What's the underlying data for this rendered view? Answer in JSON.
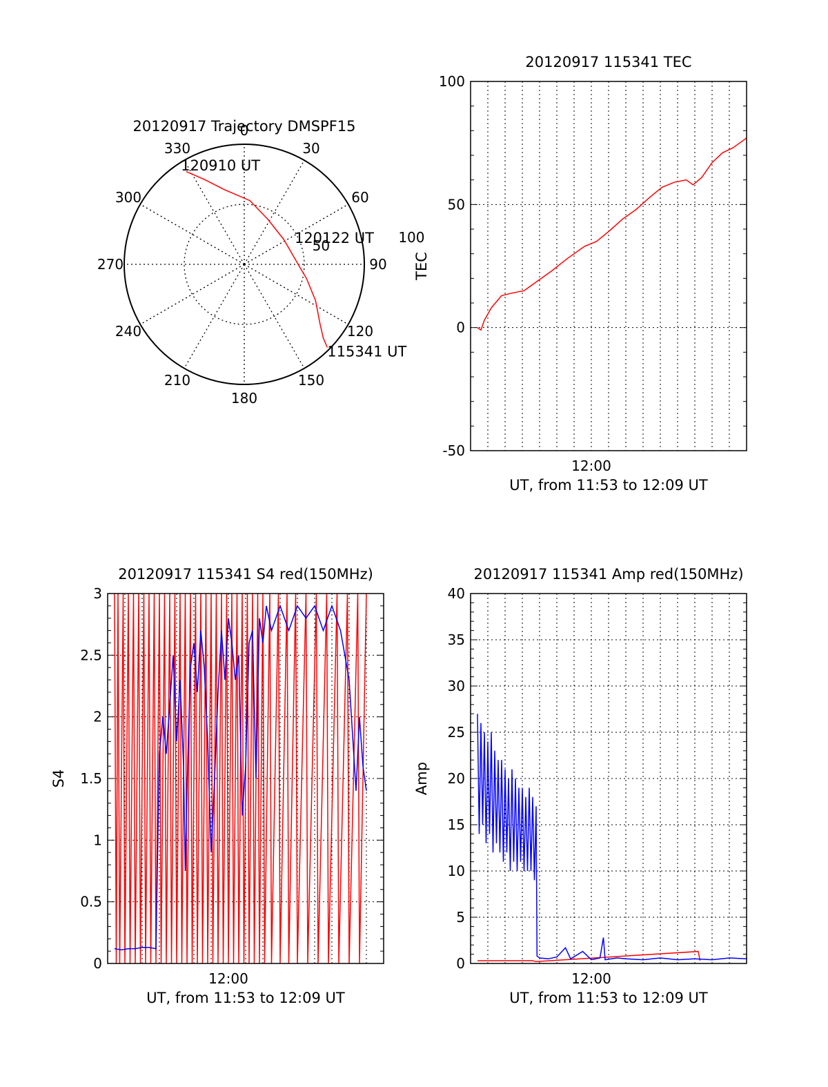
{
  "colors": {
    "red": "#ff0000",
    "blue": "#0000ff",
    "grid": "#000000",
    "axis": "#000000"
  },
  "chart_data": [
    {
      "id": "trajectory",
      "type": "scatter",
      "title": "20120917 Trajectory DMSPF15",
      "projection": "polar",
      "elevation_max": 90,
      "azimuth_labels": [
        "0",
        "30",
        "60",
        "90",
        "120",
        "150",
        "180",
        "210",
        "240",
        "270",
        "300",
        "330"
      ],
      "ring_labels": [
        {
          "text": "50",
          "r": 50
        },
        {
          "text": "100",
          "r": 100
        }
      ],
      "annotations": [
        {
          "text": "120910 UT",
          "az": 326,
          "r": 85
        },
        {
          "text": "120122 UT",
          "az": 67,
          "r": 41
        },
        {
          "text": "115341 UT",
          "az": 138,
          "r": 93
        }
      ],
      "track": {
        "color": "red",
        "points": [
          [
            328,
            82
          ],
          [
            335,
            70
          ],
          [
            345,
            58
          ],
          [
            5,
            48
          ],
          [
            28,
            38
          ],
          [
            58,
            35
          ],
          [
            83,
            38
          ],
          [
            103,
            48
          ],
          [
            117,
            60
          ],
          [
            128,
            72
          ],
          [
            133,
            81
          ],
          [
            135,
            88
          ]
        ]
      },
      "grid": true
    },
    {
      "id": "tec",
      "type": "line",
      "title": "20120917 115341 TEC",
      "xlabel": "UT, from 11:53 to 12:09 UT",
      "ylabel": "TEC",
      "xlim": [
        -7,
        9
      ],
      "ylim": [
        -50,
        100
      ],
      "xticks": [
        {
          "v": 0,
          "text": "12:00"
        }
      ],
      "yticks": [
        {
          "v": -50,
          "text": "-50"
        },
        {
          "v": 0,
          "text": "0"
        },
        {
          "v": 50,
          "text": "50"
        },
        {
          "v": 100,
          "text": "100"
        }
      ],
      "grid": true,
      "series": [
        {
          "color": "red",
          "points": [
            [
              -6.6,
              0
            ],
            [
              -6.4,
              -1
            ],
            [
              -6.2,
              3
            ],
            [
              -5.8,
              8
            ],
            [
              -5.2,
              13
            ],
            [
              -4.6,
              14
            ],
            [
              -3.9,
              15
            ],
            [
              -3.1,
              19
            ],
            [
              -2.3,
              23
            ],
            [
              -1.4,
              28
            ],
            [
              -0.4,
              33
            ],
            [
              0.3,
              35
            ],
            [
              1.0,
              39
            ],
            [
              1.8,
              44
            ],
            [
              2.6,
              48
            ],
            [
              3.4,
              53
            ],
            [
              4.1,
              57
            ],
            [
              4.8,
              59
            ],
            [
              5.5,
              60
            ],
            [
              5.9,
              58
            ],
            [
              6.4,
              61
            ],
            [
              7.0,
              67
            ],
            [
              7.6,
              71
            ],
            [
              8.2,
              73
            ],
            [
              8.6,
              75
            ],
            [
              9.0,
              77
            ]
          ]
        }
      ]
    },
    {
      "id": "s4",
      "type": "line",
      "title": "20120917 115341 S4 red(150MHz)",
      "xlabel": "UT, from 11:53 to 12:09 UT",
      "ylabel": "S4",
      "xlim": [
        -7,
        9
      ],
      "ylim": [
        0,
        3
      ],
      "xticks": [
        {
          "v": 0,
          "text": "12:00"
        }
      ],
      "yticks": [
        {
          "v": 0,
          "text": "0"
        },
        {
          "v": 0.5,
          "text": "0.5"
        },
        {
          "v": 1,
          "text": "1"
        },
        {
          "v": 1.5,
          "text": "1.5"
        },
        {
          "v": 2,
          "text": "2"
        },
        {
          "v": 2.5,
          "text": "2.5"
        },
        {
          "v": 3,
          "text": "3"
        }
      ],
      "grid": true,
      "series": [
        {
          "color": "red",
          "points": [
            [
              -6.6,
              3
            ],
            [
              -6.5,
              0
            ],
            [
              -6.4,
              3
            ],
            [
              -6.3,
              0
            ],
            [
              -6.1,
              3
            ],
            [
              -6.0,
              0
            ],
            [
              -5.8,
              3
            ],
            [
              -5.7,
              0
            ],
            [
              -5.5,
              3
            ],
            [
              -5.4,
              0
            ],
            [
              -5.2,
              3
            ],
            [
              -5.1,
              0
            ],
            [
              -4.9,
              3
            ],
            [
              -4.8,
              0
            ],
            [
              -4.6,
              3
            ],
            [
              -4.5,
              0
            ],
            [
              -4.3,
              3
            ],
            [
              -4.2,
              0
            ],
            [
              -4.0,
              3
            ],
            [
              -3.9,
              0
            ],
            [
              -3.7,
              3
            ],
            [
              -3.6,
              0
            ],
            [
              -3.4,
              3
            ],
            [
              -3.3,
              0
            ],
            [
              -3.1,
              3
            ],
            [
              -3.0,
              0
            ],
            [
              -2.8,
              3
            ],
            [
              -2.7,
              0
            ],
            [
              -2.5,
              3
            ],
            [
              -2.4,
              0
            ],
            [
              -2.2,
              3
            ],
            [
              -2.1,
              0
            ],
            [
              -1.9,
              3
            ],
            [
              -1.8,
              0
            ],
            [
              -1.6,
              3
            ],
            [
              -1.5,
              0
            ],
            [
              -1.3,
              3
            ],
            [
              -1.2,
              0
            ],
            [
              -1.0,
              3
            ],
            [
              -0.9,
              0
            ],
            [
              -0.7,
              3
            ],
            [
              -0.6,
              0
            ],
            [
              -0.4,
              3
            ],
            [
              -0.3,
              0
            ],
            [
              -0.1,
              3
            ],
            [
              0.0,
              0
            ],
            [
              0.2,
              3
            ],
            [
              0.3,
              0
            ],
            [
              0.5,
              3
            ],
            [
              0.6,
              0
            ],
            [
              0.8,
              3
            ],
            [
              0.9,
              0
            ],
            [
              1.1,
              3
            ],
            [
              1.2,
              0
            ],
            [
              1.4,
              3
            ],
            [
              1.5,
              0
            ],
            [
              1.7,
              3
            ],
            [
              1.8,
              0
            ],
            [
              2.0,
              3
            ],
            [
              2.1,
              0
            ],
            [
              2.4,
              3
            ],
            [
              2.5,
              0
            ],
            [
              2.9,
              3
            ],
            [
              3.0,
              0
            ],
            [
              3.4,
              3
            ],
            [
              3.5,
              0
            ],
            [
              3.9,
              3
            ],
            [
              4.0,
              0
            ],
            [
              4.5,
              3
            ],
            [
              4.6,
              0
            ],
            [
              5.1,
              3
            ],
            [
              5.2,
              0
            ],
            [
              5.7,
              3
            ],
            [
              5.8,
              0
            ],
            [
              6.3,
              3
            ],
            [
              6.4,
              0
            ],
            [
              6.9,
              3
            ],
            [
              7.0,
              0
            ],
            [
              7.5,
              3
            ],
            [
              7.6,
              0
            ],
            [
              8.0,
              3
            ]
          ]
        },
        {
          "color": "blue",
          "points": [
            [
              -6.6,
              0.12
            ],
            [
              -6.2,
              0.11
            ],
            [
              -5.8,
              0.12
            ],
            [
              -5.4,
              0.12
            ],
            [
              -5.0,
              0.13
            ],
            [
              -4.6,
              0.13
            ],
            [
              -4.2,
              0.12
            ],
            [
              -4.0,
              1.7
            ],
            [
              -3.8,
              2.0
            ],
            [
              -3.6,
              1.7
            ],
            [
              -3.4,
              2.1
            ],
            [
              -3.2,
              2.5
            ],
            [
              -3.0,
              1.8
            ],
            [
              -2.8,
              2.3
            ],
            [
              -2.6,
              1.6
            ],
            [
              -2.5,
              0.75
            ],
            [
              -2.4,
              1.4
            ],
            [
              -2.2,
              2.4
            ],
            [
              -2.0,
              2.6
            ],
            [
              -1.8,
              2.2
            ],
            [
              -1.6,
              2.7
            ],
            [
              -1.4,
              2.4
            ],
            [
              -1.2,
              1.8
            ],
            [
              -1.0,
              0.9
            ],
            [
              -0.8,
              1.5
            ],
            [
              -0.6,
              2.2
            ],
            [
              -0.4,
              2.7
            ],
            [
              -0.2,
              2.3
            ],
            [
              0.0,
              2.8
            ],
            [
              0.2,
              2.6
            ],
            [
              0.4,
              2.3
            ],
            [
              0.6,
              2.5
            ],
            [
              0.8,
              1.2
            ],
            [
              1.0,
              1.6
            ],
            [
              1.2,
              2.6
            ],
            [
              1.4,
              2.7
            ],
            [
              1.6,
              1.5
            ],
            [
              1.8,
              2.8
            ],
            [
              2.0,
              2.6
            ],
            [
              2.2,
              2.9
            ],
            [
              2.5,
              2.7
            ],
            [
              3.0,
              2.9
            ],
            [
              3.5,
              2.7
            ],
            [
              4.0,
              2.9
            ],
            [
              4.5,
              2.8
            ],
            [
              5.0,
              2.9
            ],
            [
              5.5,
              2.7
            ],
            [
              6.0,
              2.9
            ],
            [
              6.5,
              2.7
            ],
            [
              7.0,
              2.3
            ],
            [
              7.4,
              1.4
            ],
            [
              7.6,
              2.0
            ],
            [
              7.8,
              1.6
            ],
            [
              8.0,
              1.4
            ]
          ]
        }
      ]
    },
    {
      "id": "amp",
      "type": "line",
      "title": "20120917 115341 Amp red(150MHz)",
      "xlabel": "UT, from 11:53 to 12:09 UT",
      "ylabel": "Amp",
      "xlim": [
        -7,
        9
      ],
      "ylim": [
        0,
        40
      ],
      "xticks": [
        {
          "v": 0,
          "text": "12:00"
        }
      ],
      "yticks": [
        {
          "v": 0,
          "text": "0"
        },
        {
          "v": 5,
          "text": "5"
        },
        {
          "v": 10,
          "text": "10"
        },
        {
          "v": 15,
          "text": "15"
        },
        {
          "v": 20,
          "text": "20"
        },
        {
          "v": 25,
          "text": "25"
        },
        {
          "v": 30,
          "text": "30"
        },
        {
          "v": 35,
          "text": "35"
        },
        {
          "v": 40,
          "text": "40"
        }
      ],
      "grid": true,
      "series": [
        {
          "color": "red",
          "points": [
            [
              -6.6,
              0.3
            ],
            [
              -5.8,
              0.3
            ],
            [
              -5.0,
              0.3
            ],
            [
              -4.2,
              0.3
            ],
            [
              -3.4,
              0.3
            ],
            [
              -3.2,
              0.2
            ],
            [
              6.2,
              1.3
            ],
            [
              6.3,
              0.3
            ]
          ]
        },
        {
          "color": "blue",
          "points": [
            [
              -6.6,
              27
            ],
            [
              -6.5,
              14
            ],
            [
              -6.4,
              26
            ],
            [
              -6.3,
              15
            ],
            [
              -6.2,
              25
            ],
            [
              -6.1,
              13
            ],
            [
              -6.0,
              24
            ],
            [
              -5.9,
              14
            ],
            [
              -5.8,
              25
            ],
            [
              -5.7,
              12
            ],
            [
              -5.6,
              23
            ],
            [
              -5.5,
              13
            ],
            [
              -5.4,
              22
            ],
            [
              -5.3,
              12
            ],
            [
              -5.2,
              22
            ],
            [
              -5.1,
              11
            ],
            [
              -5.0,
              21
            ],
            [
              -4.9,
              12
            ],
            [
              -4.8,
              20
            ],
            [
              -4.7,
              10
            ],
            [
              -4.6,
              21
            ],
            [
              -4.5,
              11
            ],
            [
              -4.4,
              20
            ],
            [
              -4.3,
              10
            ],
            [
              -4.2,
              19
            ],
            [
              -4.1,
              11
            ],
            [
              -4.0,
              19
            ],
            [
              -3.9,
              10
            ],
            [
              -3.8,
              18
            ],
            [
              -3.7,
              10
            ],
            [
              -3.6,
              19
            ],
            [
              -3.5,
              10
            ],
            [
              -3.4,
              18
            ],
            [
              -3.3,
              9
            ],
            [
              -3.2,
              17
            ],
            [
              -3.15,
              0.8
            ],
            [
              -3.0,
              0.6
            ],
            [
              -2.5,
              0.5
            ],
            [
              -2.0,
              0.7
            ],
            [
              -1.5,
              1.7
            ],
            [
              -1.2,
              0.5
            ],
            [
              -0.5,
              1.3
            ],
            [
              0.0,
              0.4
            ],
            [
              0.5,
              0.6
            ],
            [
              0.7,
              2.8
            ],
            [
              0.8,
              0.4
            ],
            [
              1.5,
              0.6
            ],
            [
              2.0,
              0.5
            ],
            [
              3.0,
              0.4
            ],
            [
              4.0,
              0.6
            ],
            [
              5.0,
              0.4
            ],
            [
              6.0,
              0.5
            ],
            [
              7.0,
              0.4
            ],
            [
              8.0,
              0.6
            ],
            [
              9.0,
              0.5
            ]
          ]
        }
      ]
    }
  ]
}
